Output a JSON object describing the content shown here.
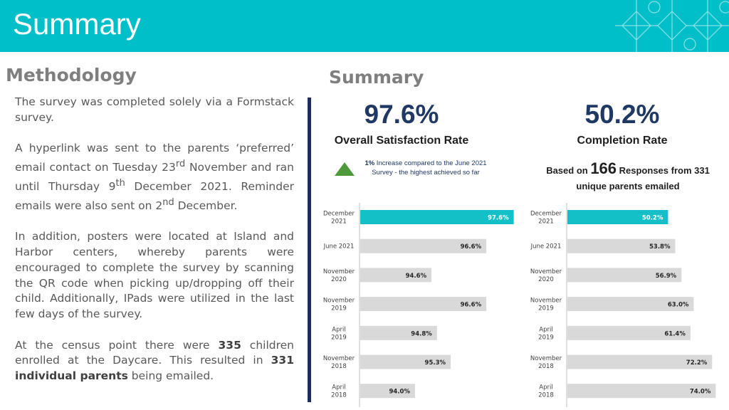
{
  "header": {
    "title": "Summary"
  },
  "methodology": {
    "heading": "Methodology",
    "paragraphs": [
      [
        {
          "text": "The survey was completed solely via a Formstack survey."
        }
      ],
      [
        {
          "text": "A hyperlink was sent to the parents ‘preferred’ email contact on Tuesday 23"
        },
        {
          "text": "rd",
          "style": "sup"
        },
        {
          "text": " November and ran until Thursday 9"
        },
        {
          "text": "th",
          "style": "sup"
        },
        {
          "text": " December 2021. Reminder emails were also sent on 2"
        },
        {
          "text": "nd",
          "style": "sup"
        },
        {
          "text": " December."
        }
      ],
      [
        {
          "text": "In addition, posters were located at Island and Harbor centers, whereby parents were encouraged to complete the survey by scanning the QR code when picking up/dropping off their child. Additionally, IPads were utilized in the last few days of the survey."
        }
      ],
      [
        {
          "text": "At the census point there were "
        },
        {
          "text": "335",
          "style": "bold"
        },
        {
          "text": " children enrolled at the Daycare. This resulted in "
        },
        {
          "text": "331 individual parents",
          "style": "bold"
        },
        {
          "text": " being emailed."
        }
      ]
    ]
  },
  "summary": {
    "heading": "Summary",
    "satisfaction": {
      "value": "97.6%",
      "label": "Overall Satisfaction Rate",
      "note": [
        {
          "text": "1%",
          "style": "bold"
        },
        {
          "text": " Increase compared to the June 2021 Survey - the highest achieved so far"
        }
      ]
    },
    "completion": {
      "value": "50.2%",
      "label": "Completion Rate",
      "note": [
        {
          "text": "Based on "
        },
        {
          "text": "166",
          "style": "big"
        },
        {
          "text": " Responses from 331 unique parents emailed"
        }
      ]
    }
  },
  "chart_data": [
    {
      "type": "bar",
      "orientation": "horizontal",
      "categories": [
        "December 2021",
        "June 2021",
        "November 2020",
        "November 2019",
        "April 2019",
        "November 2018",
        "April 2018"
      ],
      "values": [
        97.6,
        96.6,
        94.6,
        96.6,
        94.8,
        95.3,
        94.0
      ],
      "value_labels": [
        "97.6%",
        "96.6%",
        "94.6%",
        "96.6%",
        "94.8%",
        "95.3%",
        "94.0%"
      ],
      "colors": [
        "#13c0c8",
        "#d9d9d9",
        "#d9d9d9",
        "#d9d9d9",
        "#d9d9d9",
        "#d9d9d9",
        "#d9d9d9"
      ],
      "xlim": [
        92,
        98
      ]
    },
    {
      "type": "bar",
      "orientation": "horizontal",
      "categories": [
        "December 2021",
        "June 2021",
        "November 2020",
        "November 2019",
        "April 2019",
        "November 2018",
        "April 2018"
      ],
      "values": [
        50.2,
        53.8,
        56.9,
        63.0,
        61.4,
        72.2,
        74.0
      ],
      "value_labels": [
        "50.2%",
        "53.8%",
        "56.9%",
        "63.0%",
        "61.4%",
        "72.2%",
        "74.0%"
      ],
      "colors": [
        "#13c0c8",
        "#d9d9d9",
        "#d9d9d9",
        "#d9d9d9",
        "#d9d9d9",
        "#d9d9d9",
        "#d9d9d9"
      ],
      "xlim": [
        0,
        76
      ]
    }
  ]
}
